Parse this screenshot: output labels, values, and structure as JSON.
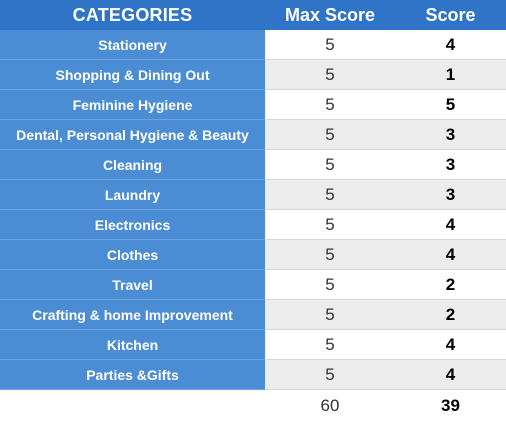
{
  "headers": {
    "category": "CATEGORIES",
    "max_score": "Max Score",
    "score": "Score"
  },
  "rows": [
    {
      "category": "Stationery",
      "max": "5",
      "score": "4"
    },
    {
      "category": "Shopping & Dining Out",
      "max": "5",
      "score": "1"
    },
    {
      "category": "Feminine Hygiene",
      "max": "5",
      "score": "5"
    },
    {
      "category": "Dental, Personal Hygiene & Beauty",
      "max": "5",
      "score": "3"
    },
    {
      "category": "Cleaning",
      "max": "5",
      "score": "3"
    },
    {
      "category": "Laundry",
      "max": "5",
      "score": "3"
    },
    {
      "category": "Electronics",
      "max": "5",
      "score": "4"
    },
    {
      "category": "Clothes",
      "max": "5",
      "score": "4"
    },
    {
      "category": "Travel",
      "max": "5",
      "score": "2"
    },
    {
      "category": "Crafting & home Improvement",
      "max": "5",
      "score": "2"
    },
    {
      "category": "Kitchen",
      "max": "5",
      "score": "4"
    },
    {
      "category": "Parties &Gifts",
      "max": "5",
      "score": "4"
    }
  ],
  "totals": {
    "max": "60",
    "score": "39"
  }
}
